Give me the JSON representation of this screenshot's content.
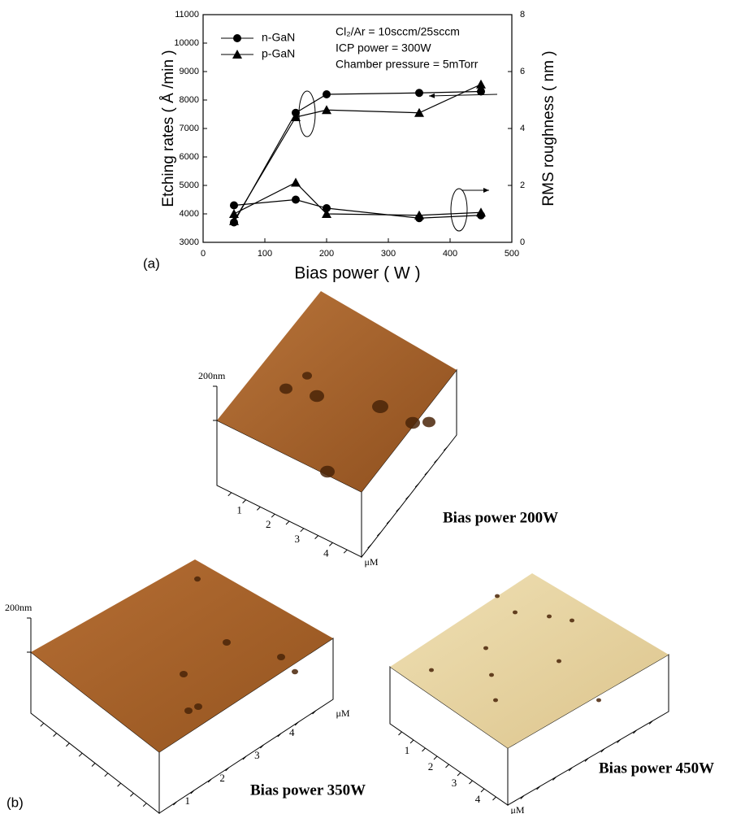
{
  "chart_data": {
    "type": "line",
    "x": [
      50,
      150,
      200,
      350,
      450
    ],
    "xlim": [
      0,
      500
    ],
    "xticks": [
      0,
      100,
      200,
      300,
      400,
      500
    ],
    "ylim": [
      3000,
      11000
    ],
    "yticks": [
      3000,
      4000,
      5000,
      6000,
      7000,
      8000,
      9000,
      10000,
      11000
    ],
    "y2lim": [
      0,
      8
    ],
    "y2ticks": [
      0,
      2,
      4,
      6,
      8
    ],
    "xlabel": "Bias power ( W )",
    "ylabel": "Etching rates ( Å /min )",
    "y2label": "RMS roughness ( nm )",
    "annotations": [
      "Cl₂/Ar = 10sccm/25sccm",
      "ICP power = 300W",
      "Chamber pressure = 5mTorr"
    ],
    "panel_label": "(a)",
    "legend": "upper left",
    "series": [
      {
        "name": "n-GaN",
        "marker": "circle",
        "color": "#000000",
        "values": [
          3700,
          7550,
          8200,
          8250,
          8300
        ]
      },
      {
        "name": "p-GaN",
        "marker": "triangle",
        "color": "#000000",
        "values": [
          3750,
          7400,
          7650,
          7550,
          8550
        ]
      },
      {
        "marker": "circle",
        "color": "#000000",
        "axis": "y2",
        "values": [
          1.3,
          1.5,
          1.2,
          0.85,
          0.95
        ]
      },
      {
        "marker": "triangle",
        "color": "#000000",
        "axis": "y2",
        "values": [
          1.0,
          2.1,
          1.0,
          0.95,
          1.05
        ]
      }
    ]
  },
  "figure_b": {
    "panel_label": "(b)",
    "images": [
      {
        "title": "Bias power 200W",
        "z_scale": "200nm",
        "axis_unit": "μM",
        "axis_ticks": [
          1,
          2,
          3,
          4
        ]
      },
      {
        "title": "Bias power 350W",
        "z_scale": "200nm",
        "axis_unit": "μM",
        "axis_ticks": [
          1,
          2,
          3,
          4
        ]
      },
      {
        "title": "Bias power 450W",
        "axis_unit": "μM",
        "axis_ticks": [
          1,
          2,
          3,
          4
        ]
      }
    ]
  }
}
